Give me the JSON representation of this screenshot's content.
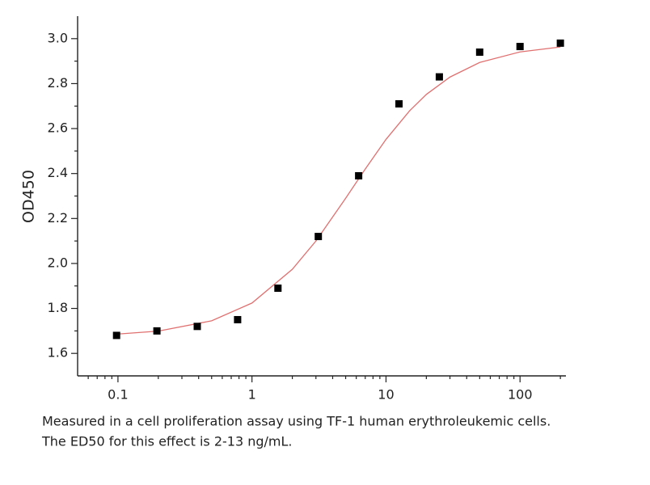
{
  "chart_data": {
    "type": "scatter",
    "y_label": "OD450",
    "x": [
      0.09765625,
      0.1953125,
      0.390625,
      0.78125,
      1.5625,
      3.125,
      6.25,
      12.5,
      25,
      50,
      100,
      200
    ],
    "values": [
      1.68,
      1.7,
      1.72,
      1.75,
      1.89,
      2.12,
      2.39,
      2.71,
      2.83,
      2.94,
      2.965,
      2.98
    ],
    "color": "#000000",
    "curve": {
      "color": "#e07070",
      "x": [
        0.1,
        0.2,
        0.5,
        1,
        2,
        3,
        5,
        7,
        10,
        15,
        20,
        30,
        50,
        100,
        200
      ],
      "values": [
        1.686,
        1.699,
        1.745,
        1.824,
        1.974,
        2.1,
        2.29,
        2.42,
        2.552,
        2.679,
        2.752,
        2.829,
        2.894,
        2.941,
        2.963
      ]
    },
    "x_log": true,
    "xlim": [
      0.05,
      220
    ],
    "ylim": [
      1.5,
      3.1
    ],
    "xticks": [
      0.1,
      1,
      10,
      100
    ],
    "xminor_ticks": [
      0.06,
      0.07,
      0.08,
      0.09,
      0.2,
      0.3,
      0.4,
      0.5,
      0.6,
      0.7,
      0.8,
      0.9,
      2,
      3,
      4,
      5,
      6,
      7,
      8,
      9,
      20,
      30,
      40,
      50,
      60,
      70,
      80,
      90,
      200
    ],
    "yticks": [
      1.6,
      1.8,
      {
        "value": 2,
        "label": "2.0"
      },
      2.2,
      2.4,
      2.6,
      2.8,
      {
        "value": 3,
        "label": "3.0"
      }
    ],
    "yminor_ticks": [
      1.7,
      1.9,
      2.1,
      2.3,
      2.5,
      2.7,
      2.9
    ],
    "caption": [
      "Measured in a cell proliferation assay using TF-1 human erythroleukemic cells.",
      "The ED50 for this effect is 2-13 ng/mL."
    ]
  }
}
